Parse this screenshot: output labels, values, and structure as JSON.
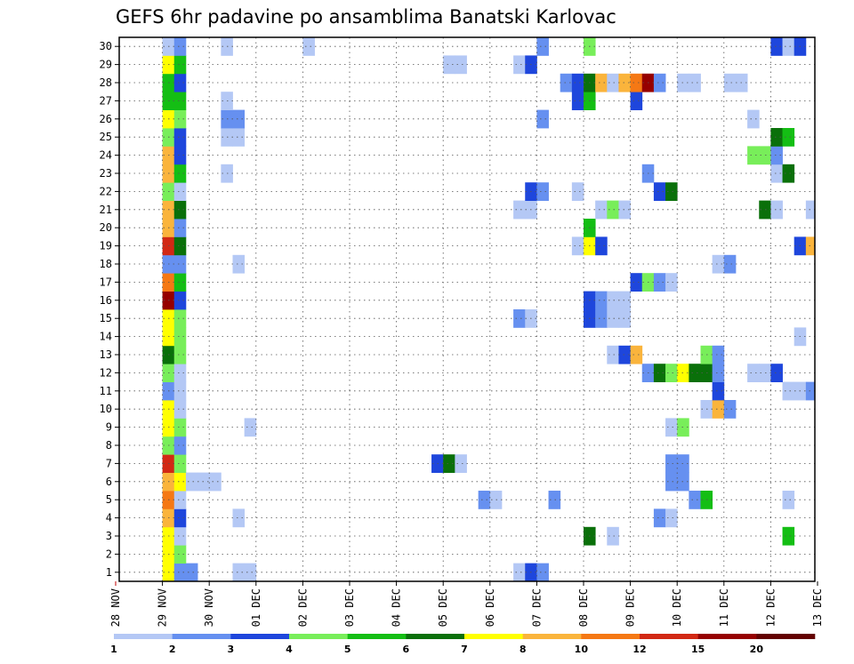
{
  "chart_data": {
    "type": "heatmap",
    "title": "GEFS 6hr padavine po ansamblima Banatski Karlovac",
    "x_tick_labels": [
      "28 NOV",
      "29 NOV",
      "30 NOV",
      "01 DEC",
      "02 DEC",
      "03 DEC",
      "04 DEC",
      "05 DEC",
      "06 DEC",
      "07 DEC",
      "08 DEC",
      "09 DEC",
      "10 DEC",
      "11 DEC",
      "12 DEC",
      "13 DEC"
    ],
    "y_tick_labels": [
      1,
      2,
      3,
      4,
      5,
      6,
      7,
      8,
      9,
      10,
      11,
      12,
      13,
      14,
      15,
      16,
      17,
      18,
      19,
      20,
      21,
      22,
      23,
      24,
      25,
      26,
      27,
      28,
      29,
      30
    ],
    "ylim": [
      0.5,
      30.5
    ],
    "time_step": "6hr",
    "grid": "dotted",
    "colorbar": {
      "placement": "bottom",
      "labels": [
        "1",
        "2",
        "3",
        "4",
        "5",
        "6",
        "7",
        "8",
        "10",
        "12",
        "15",
        "20"
      ],
      "colors": [
        "#b4c8f5",
        "#6690f0",
        "#1e46dc",
        "#78ee5a",
        "#14be14",
        "#0a700a",
        "#ffff00",
        "#fab43c",
        "#f57814",
        "#d22814",
        "#960000",
        "#640000"
      ]
    },
    "cells": [
      {
        "member": 1,
        "time": "29 NOV 00Z",
        "category": 7
      },
      {
        "member": 1,
        "time": "29 NOV 06Z",
        "category": 2
      },
      {
        "member": 1,
        "time": "29 NOV 12Z",
        "category": 2
      },
      {
        "member": 1,
        "time": "30 NOV 12Z",
        "category": 1
      },
      {
        "member": 1,
        "time": "30 NOV 18Z",
        "category": 1
      },
      {
        "member": 1,
        "time": "06 DEC 12Z",
        "category": 1
      },
      {
        "member": 1,
        "time": "06 DEC 18Z",
        "category": 3
      },
      {
        "member": 1,
        "time": "07 DEC 00Z",
        "category": 2
      },
      {
        "member": 2,
        "time": "29 NOV 00Z",
        "category": 7
      },
      {
        "member": 2,
        "time": "29 NOV 06Z",
        "category": 4
      },
      {
        "member": 3,
        "time": "29 NOV 00Z",
        "category": 7
      },
      {
        "member": 3,
        "time": "29 NOV 06Z",
        "category": 1
      },
      {
        "member": 3,
        "time": "08 DEC 00Z",
        "category": 6
      },
      {
        "member": 3,
        "time": "08 DEC 12Z",
        "category": 1
      },
      {
        "member": 3,
        "time": "12 DEC 06Z",
        "category": 5
      },
      {
        "member": 4,
        "time": "29 NOV 00Z",
        "category": 8
      },
      {
        "member": 4,
        "time": "29 NOV 06Z",
        "category": 3
      },
      {
        "member": 4,
        "time": "30 NOV 12Z",
        "category": 1
      },
      {
        "member": 4,
        "time": "09 DEC 12Z",
        "category": 2
      },
      {
        "member": 4,
        "time": "09 DEC 18Z",
        "category": 1
      },
      {
        "member": 5,
        "time": "29 NOV 00Z",
        "category": 9
      },
      {
        "member": 5,
        "time": "29 NOV 06Z",
        "category": 1
      },
      {
        "member": 5,
        "time": "05 DEC 18Z",
        "category": 2
      },
      {
        "member": 5,
        "time": "06 DEC 00Z",
        "category": 1
      },
      {
        "member": 5,
        "time": "07 DEC 06Z",
        "category": 2
      },
      {
        "member": 5,
        "time": "10 DEC 06Z",
        "category": 2
      },
      {
        "member": 5,
        "time": "10 DEC 12Z",
        "category": 5
      },
      {
        "member": 5,
        "time": "12 DEC 06Z",
        "category": 1
      },
      {
        "member": 6,
        "time": "29 NOV 00Z",
        "category": 8
      },
      {
        "member": 6,
        "time": "29 NOV 06Z",
        "category": 7
      },
      {
        "member": 6,
        "time": "29 NOV 12Z",
        "category": 1
      },
      {
        "member": 6,
        "time": "29 NOV 18Z",
        "category": 1
      },
      {
        "member": 6,
        "time": "30 NOV 00Z",
        "category": 1
      },
      {
        "member": 6,
        "time": "09 DEC 18Z",
        "category": 2
      },
      {
        "member": 6,
        "time": "10 DEC 00Z",
        "category": 2
      },
      {
        "member": 7,
        "time": "29 NOV 00Z",
        "category": 10
      },
      {
        "member": 7,
        "time": "29 NOV 06Z",
        "category": 4
      },
      {
        "member": 7,
        "time": "04 DEC 18Z",
        "category": 3
      },
      {
        "member": 7,
        "time": "05 DEC 00Z",
        "category": 6
      },
      {
        "member": 7,
        "time": "05 DEC 06Z",
        "category": 1
      },
      {
        "member": 7,
        "time": "09 DEC 18Z",
        "category": 2
      },
      {
        "member": 7,
        "time": "10 DEC 00Z",
        "category": 2
      },
      {
        "member": 8,
        "time": "29 NOV 00Z",
        "category": 4
      },
      {
        "member": 8,
        "time": "29 NOV 06Z",
        "category": 2
      },
      {
        "member": 9,
        "time": "29 NOV 00Z",
        "category": 7
      },
      {
        "member": 9,
        "time": "29 NOV 06Z",
        "category": 4
      },
      {
        "member": 9,
        "time": "30 NOV 18Z",
        "category": 1
      },
      {
        "member": 9,
        "time": "09 DEC 18Z",
        "category": 1
      },
      {
        "member": 9,
        "time": "10 DEC 00Z",
        "category": 4
      },
      {
        "member": 10,
        "time": "29 NOV 00Z",
        "category": 7
      },
      {
        "member": 10,
        "time": "29 NOV 06Z",
        "category": 1
      },
      {
        "member": 10,
        "time": "10 DEC 12Z",
        "category": 1
      },
      {
        "member": 10,
        "time": "10 DEC 18Z",
        "category": 8
      },
      {
        "member": 10,
        "time": "11 DEC 00Z",
        "category": 2
      },
      {
        "member": 11,
        "time": "29 NOV 00Z",
        "category": 2
      },
      {
        "member": 11,
        "time": "29 NOV 06Z",
        "category": 1
      },
      {
        "member": 11,
        "time": "10 DEC 18Z",
        "category": 3
      },
      {
        "member": 11,
        "time": "12 DEC 06Z",
        "category": 1
      },
      {
        "member": 11,
        "time": "12 DEC 12Z",
        "category": 1
      },
      {
        "member": 11,
        "time": "12 DEC 18Z",
        "category": 2
      },
      {
        "member": 12,
        "time": "29 NOV 00Z",
        "category": 4
      },
      {
        "member": 12,
        "time": "29 NOV 06Z",
        "category": 1
      },
      {
        "member": 12,
        "time": "09 DEC 06Z",
        "category": 2
      },
      {
        "member": 12,
        "time": "09 DEC 12Z",
        "category": 6
      },
      {
        "member": 12,
        "time": "09 DEC 18Z",
        "category": 4
      },
      {
        "member": 12,
        "time": "10 DEC 00Z",
        "category": 7
      },
      {
        "member": 12,
        "time": "10 DEC 06Z",
        "category": 6
      },
      {
        "member": 12,
        "time": "10 DEC 12Z",
        "category": 6
      },
      {
        "member": 12,
        "time": "10 DEC 18Z",
        "category": 2
      },
      {
        "member": 12,
        "time": "11 DEC 12Z",
        "category": 1
      },
      {
        "member": 12,
        "time": "11 DEC 18Z",
        "category": 1
      },
      {
        "member": 12,
        "time": "12 DEC 00Z",
        "category": 3
      },
      {
        "member": 13,
        "time": "29 NOV 00Z",
        "category": 6
      },
      {
        "member": 13,
        "time": "29 NOV 06Z",
        "category": 4
      },
      {
        "member": 13,
        "time": "08 DEC 12Z",
        "category": 1
      },
      {
        "member": 13,
        "time": "08 DEC 18Z",
        "category": 3
      },
      {
        "member": 13,
        "time": "09 DEC 00Z",
        "category": 8
      },
      {
        "member": 13,
        "time": "10 DEC 12Z",
        "category": 4
      },
      {
        "member": 13,
        "time": "10 DEC 18Z",
        "category": 2
      },
      {
        "member": 14,
        "time": "29 NOV 00Z",
        "category": 7
      },
      {
        "member": 14,
        "time": "29 NOV 06Z",
        "category": 4
      },
      {
        "member": 14,
        "time": "12 DEC 12Z",
        "category": 1
      },
      {
        "member": 15,
        "time": "29 NOV 00Z",
        "category": 7
      },
      {
        "member": 15,
        "time": "29 NOV 06Z",
        "category": 4
      },
      {
        "member": 15,
        "time": "06 DEC 12Z",
        "category": 2
      },
      {
        "member": 15,
        "time": "06 DEC 18Z",
        "category": 1
      },
      {
        "member": 15,
        "time": "08 DEC 00Z",
        "category": 3
      },
      {
        "member": 15,
        "time": "08 DEC 06Z",
        "category": 2
      },
      {
        "member": 15,
        "time": "08 DEC 12Z",
        "category": 1
      },
      {
        "member": 15,
        "time": "08 DEC 18Z",
        "category": 1
      },
      {
        "member": 16,
        "time": "29 NOV 00Z",
        "category": 11
      },
      {
        "member": 16,
        "time": "29 NOV 06Z",
        "category": 3
      },
      {
        "member": 16,
        "time": "08 DEC 00Z",
        "category": 3
      },
      {
        "member": 16,
        "time": "08 DEC 06Z",
        "category": 2
      },
      {
        "member": 16,
        "time": "08 DEC 12Z",
        "category": 1
      },
      {
        "member": 16,
        "time": "08 DEC 18Z",
        "category": 1
      },
      {
        "member": 17,
        "time": "29 NOV 00Z",
        "category": 9
      },
      {
        "member": 17,
        "time": "29 NOV 06Z",
        "category": 5
      },
      {
        "member": 17,
        "time": "09 DEC 00Z",
        "category": 3
      },
      {
        "member": 17,
        "time": "09 DEC 06Z",
        "category": 4
      },
      {
        "member": 17,
        "time": "09 DEC 12Z",
        "category": 2
      },
      {
        "member": 17,
        "time": "09 DEC 18Z",
        "category": 1
      },
      {
        "member": 18,
        "time": "29 NOV 00Z",
        "category": 2
      },
      {
        "member": 18,
        "time": "29 NOV 06Z",
        "category": 2
      },
      {
        "member": 18,
        "time": "30 NOV 12Z",
        "category": 1
      },
      {
        "member": 18,
        "time": "10 DEC 18Z",
        "category": 1
      },
      {
        "member": 18,
        "time": "11 DEC 00Z",
        "category": 2
      },
      {
        "member": 19,
        "time": "29 NOV 00Z",
        "category": 10
      },
      {
        "member": 19,
        "time": "29 NOV 06Z",
        "category": 6
      },
      {
        "member": 19,
        "time": "07 DEC 18Z",
        "category": 1
      },
      {
        "member": 19,
        "time": "08 DEC 00Z",
        "category": 7
      },
      {
        "member": 19,
        "time": "08 DEC 06Z",
        "category": 3
      },
      {
        "member": 19,
        "time": "12 DEC 12Z",
        "category": 3
      },
      {
        "member": 19,
        "time": "12 DEC 18Z",
        "category": 8
      },
      {
        "member": 20,
        "time": "29 NOV 00Z",
        "category": 8
      },
      {
        "member": 20,
        "time": "29 NOV 06Z",
        "category": 2
      },
      {
        "member": 20,
        "time": "08 DEC 00Z",
        "category": 5
      },
      {
        "member": 21,
        "time": "29 NOV 00Z",
        "category": 8
      },
      {
        "member": 21,
        "time": "29 NOV 06Z",
        "category": 6
      },
      {
        "member": 21,
        "time": "06 DEC 12Z",
        "category": 1
      },
      {
        "member": 21,
        "time": "06 DEC 18Z",
        "category": 1
      },
      {
        "member": 21,
        "time": "08 DEC 06Z",
        "category": 1
      },
      {
        "member": 21,
        "time": "08 DEC 12Z",
        "category": 4
      },
      {
        "member": 21,
        "time": "08 DEC 18Z",
        "category": 1
      },
      {
        "member": 21,
        "time": "11 DEC 18Z",
        "category": 6
      },
      {
        "member": 21,
        "time": "12 DEC 00Z",
        "category": 1
      },
      {
        "member": 21,
        "time": "12 DEC 18Z",
        "category": 1
      },
      {
        "member": 22,
        "time": "29 NOV 00Z",
        "category": 4
      },
      {
        "member": 22,
        "time": "29 NOV 06Z",
        "category": 1
      },
      {
        "member": 22,
        "time": "06 DEC 18Z",
        "category": 3
      },
      {
        "member": 22,
        "time": "07 DEC 00Z",
        "category": 2
      },
      {
        "member": 22,
        "time": "07 DEC 18Z",
        "category": 1
      },
      {
        "member": 22,
        "time": "09 DEC 12Z",
        "category": 3
      },
      {
        "member": 22,
        "time": "09 DEC 18Z",
        "category": 6
      },
      {
        "member": 23,
        "time": "29 NOV 00Z",
        "category": 8
      },
      {
        "member": 23,
        "time": "29 NOV 06Z",
        "category": 5
      },
      {
        "member": 23,
        "time": "30 NOV 06Z",
        "category": 1
      },
      {
        "member": 23,
        "time": "09 DEC 06Z",
        "category": 2
      },
      {
        "member": 23,
        "time": "12 DEC 00Z",
        "category": 1
      },
      {
        "member": 23,
        "time": "12 DEC 06Z",
        "category": 6
      },
      {
        "member": 24,
        "time": "29 NOV 00Z",
        "category": 8
      },
      {
        "member": 24,
        "time": "29 NOV 06Z",
        "category": 3
      },
      {
        "member": 24,
        "time": "11 DEC 12Z",
        "category": 4
      },
      {
        "member": 24,
        "time": "11 DEC 18Z",
        "category": 4
      },
      {
        "member": 24,
        "time": "12 DEC 00Z",
        "category": 2
      },
      {
        "member": 25,
        "time": "29 NOV 00Z",
        "category": 4
      },
      {
        "member": 25,
        "time": "29 NOV 06Z",
        "category": 3
      },
      {
        "member": 25,
        "time": "30 NOV 06Z",
        "category": 1
      },
      {
        "member": 25,
        "time": "30 NOV 12Z",
        "category": 1
      },
      {
        "member": 25,
        "time": "12 DEC 00Z",
        "category": 6
      },
      {
        "member": 25,
        "time": "12 DEC 06Z",
        "category": 5
      },
      {
        "member": 26,
        "time": "29 NOV 00Z",
        "category": 7
      },
      {
        "member": 26,
        "time": "29 NOV 06Z",
        "category": 4
      },
      {
        "member": 26,
        "time": "30 NOV 06Z",
        "category": 2
      },
      {
        "member": 26,
        "time": "30 NOV 12Z",
        "category": 2
      },
      {
        "member": 26,
        "time": "07 DEC 00Z",
        "category": 2
      },
      {
        "member": 26,
        "time": "11 DEC 12Z",
        "category": 1
      },
      {
        "member": 27,
        "time": "29 NOV 00Z",
        "category": 5
      },
      {
        "member": 27,
        "time": "29 NOV 06Z",
        "category": 5
      },
      {
        "member": 27,
        "time": "30 NOV 06Z",
        "category": 1
      },
      {
        "member": 27,
        "time": "07 DEC 18Z",
        "category": 3
      },
      {
        "member": 27,
        "time": "08 DEC 00Z",
        "category": 5
      },
      {
        "member": 27,
        "time": "09 DEC 00Z",
        "category": 3
      },
      {
        "member": 28,
        "time": "29 NOV 00Z",
        "category": 5
      },
      {
        "member": 28,
        "time": "29 NOV 06Z",
        "category": 3
      },
      {
        "member": 28,
        "time": "07 DEC 12Z",
        "category": 2
      },
      {
        "member": 28,
        "time": "07 DEC 18Z",
        "category": 3
      },
      {
        "member": 28,
        "time": "08 DEC 00Z",
        "category": 6
      },
      {
        "member": 28,
        "time": "08 DEC 06Z",
        "category": 8
      },
      {
        "member": 28,
        "time": "08 DEC 12Z",
        "category": 1
      },
      {
        "member": 28,
        "time": "08 DEC 18Z",
        "category": 8
      },
      {
        "member": 28,
        "time": "09 DEC 00Z",
        "category": 9
      },
      {
        "member": 28,
        "time": "09 DEC 06Z",
        "category": 11
      },
      {
        "member": 28,
        "time": "09 DEC 12Z",
        "category": 2
      },
      {
        "member": 28,
        "time": "10 DEC 00Z",
        "category": 1
      },
      {
        "member": 28,
        "time": "10 DEC 06Z",
        "category": 1
      },
      {
        "member": 28,
        "time": "11 DEC 00Z",
        "category": 1
      },
      {
        "member": 28,
        "time": "11 DEC 06Z",
        "category": 1
      },
      {
        "member": 29,
        "time": "29 NOV 00Z",
        "category": 7
      },
      {
        "member": 29,
        "time": "29 NOV 06Z",
        "category": 5
      },
      {
        "member": 29,
        "time": "05 DEC 00Z",
        "category": 1
      },
      {
        "member": 29,
        "time": "05 DEC 06Z",
        "category": 1
      },
      {
        "member": 29,
        "time": "06 DEC 12Z",
        "category": 1
      },
      {
        "member": 29,
        "time": "06 DEC 18Z",
        "category": 3
      },
      {
        "member": 30,
        "time": "29 NOV 00Z",
        "category": 1
      },
      {
        "member": 30,
        "time": "29 NOV 06Z",
        "category": 2
      },
      {
        "member": 30,
        "time": "30 NOV 06Z",
        "category": 1
      },
      {
        "member": 30,
        "time": "02 DEC 00Z",
        "category": 1
      },
      {
        "member": 30,
        "time": "07 DEC 00Z",
        "category": 2
      },
      {
        "member": 30,
        "time": "08 DEC 00Z",
        "category": 4
      },
      {
        "member": 30,
        "time": "12 DEC 00Z",
        "category": 3
      },
      {
        "member": 30,
        "time": "12 DEC 06Z",
        "category": 1
      },
      {
        "member": 30,
        "time": "12 DEC 12Z",
        "category": 3
      }
    ]
  }
}
